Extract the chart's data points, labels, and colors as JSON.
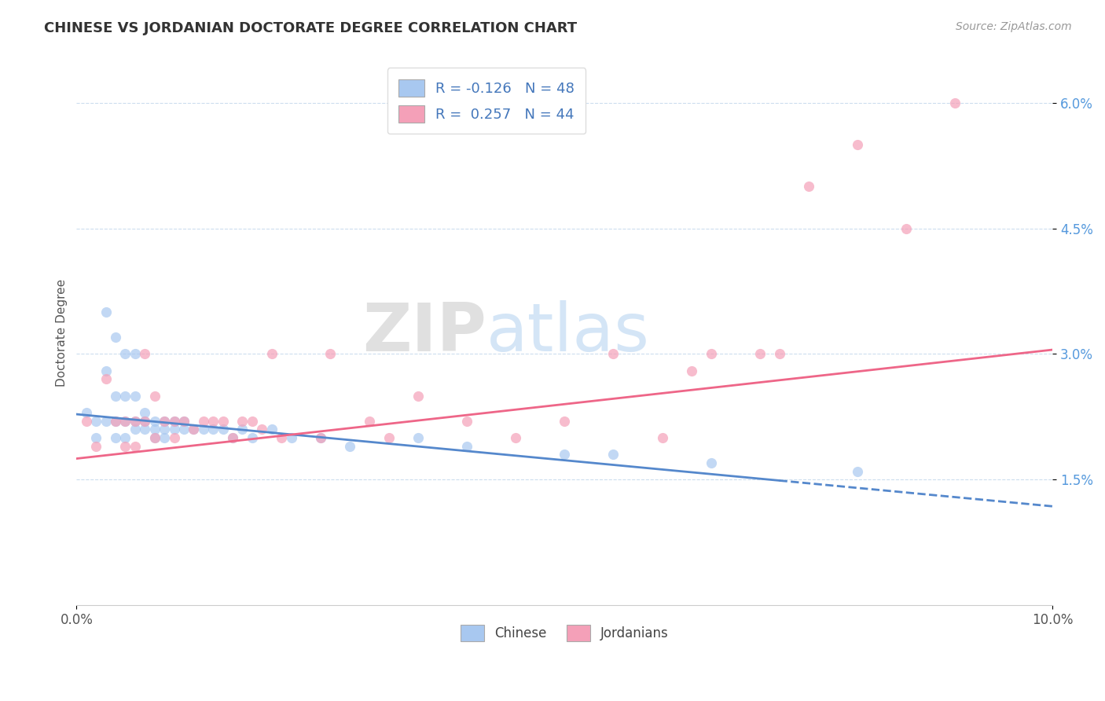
{
  "title": "CHINESE VS JORDANIAN DOCTORATE DEGREE CORRELATION CHART",
  "source": "Source: ZipAtlas.com",
  "xlabel": "",
  "ylabel": "Doctorate Degree",
  "xlim": [
    0.0,
    0.1
  ],
  "ylim": [
    0.0,
    0.065
  ],
  "xtick_labels": [
    "0.0%",
    "10.0%"
  ],
  "xtick_vals": [
    0.0,
    0.1
  ],
  "yticks": [
    0.015,
    0.03,
    0.045,
    0.06
  ],
  "ytick_labels": [
    "1.5%",
    "3.0%",
    "4.5%",
    "6.0%"
  ],
  "chinese_color": "#A8C8F0",
  "jordanian_color": "#F4A0B8",
  "chinese_line_color": "#5588CC",
  "jordanian_line_color": "#EE6688",
  "chinese_line_solid_end": 0.072,
  "chinese_line_y_start": 0.0228,
  "chinese_line_y_end": 0.0118,
  "jordanian_line_y_start": 0.0175,
  "jordanian_line_y_end": 0.0305,
  "watermark_zip": "ZIP",
  "watermark_atlas": "atlas",
  "legend_text_1": "R = -0.126   N = 48",
  "legend_text_2": "R =  0.257   N = 44",
  "title_color": "#333333",
  "source_color": "#999999",
  "ytick_color": "#5599DD",
  "xtick_color": "#555555",
  "grid_color": "#CCDDEE",
  "chinese_scatter": [
    [
      0.001,
      0.023
    ],
    [
      0.002,
      0.022
    ],
    [
      0.002,
      0.02
    ],
    [
      0.003,
      0.035
    ],
    [
      0.003,
      0.028
    ],
    [
      0.003,
      0.022
    ],
    [
      0.004,
      0.032
    ],
    [
      0.004,
      0.025
    ],
    [
      0.004,
      0.022
    ],
    [
      0.004,
      0.02
    ],
    [
      0.005,
      0.03
    ],
    [
      0.005,
      0.025
    ],
    [
      0.005,
      0.022
    ],
    [
      0.005,
      0.02
    ],
    [
      0.006,
      0.03
    ],
    [
      0.006,
      0.025
    ],
    [
      0.006,
      0.022
    ],
    [
      0.006,
      0.021
    ],
    [
      0.007,
      0.023
    ],
    [
      0.007,
      0.022
    ],
    [
      0.007,
      0.021
    ],
    [
      0.008,
      0.022
    ],
    [
      0.008,
      0.021
    ],
    [
      0.008,
      0.02
    ],
    [
      0.009,
      0.022
    ],
    [
      0.009,
      0.021
    ],
    [
      0.009,
      0.02
    ],
    [
      0.01,
      0.022
    ],
    [
      0.01,
      0.021
    ],
    [
      0.011,
      0.022
    ],
    [
      0.011,
      0.021
    ],
    [
      0.012,
      0.021
    ],
    [
      0.013,
      0.021
    ],
    [
      0.014,
      0.021
    ],
    [
      0.015,
      0.021
    ],
    [
      0.016,
      0.02
    ],
    [
      0.017,
      0.021
    ],
    [
      0.018,
      0.02
    ],
    [
      0.02,
      0.021
    ],
    [
      0.022,
      0.02
    ],
    [
      0.025,
      0.02
    ],
    [
      0.028,
      0.019
    ],
    [
      0.035,
      0.02
    ],
    [
      0.04,
      0.019
    ],
    [
      0.05,
      0.018
    ],
    [
      0.055,
      0.018
    ],
    [
      0.065,
      0.017
    ],
    [
      0.08,
      0.016
    ]
  ],
  "jordanian_scatter": [
    [
      0.001,
      0.022
    ],
    [
      0.002,
      0.019
    ],
    [
      0.003,
      0.027
    ],
    [
      0.004,
      0.022
    ],
    [
      0.005,
      0.022
    ],
    [
      0.005,
      0.019
    ],
    [
      0.006,
      0.022
    ],
    [
      0.006,
      0.019
    ],
    [
      0.007,
      0.03
    ],
    [
      0.007,
      0.022
    ],
    [
      0.008,
      0.025
    ],
    [
      0.008,
      0.02
    ],
    [
      0.009,
      0.022
    ],
    [
      0.01,
      0.022
    ],
    [
      0.01,
      0.02
    ],
    [
      0.011,
      0.022
    ],
    [
      0.012,
      0.021
    ],
    [
      0.013,
      0.022
    ],
    [
      0.014,
      0.022
    ],
    [
      0.015,
      0.022
    ],
    [
      0.016,
      0.02
    ],
    [
      0.017,
      0.022
    ],
    [
      0.018,
      0.022
    ],
    [
      0.019,
      0.021
    ],
    [
      0.02,
      0.03
    ],
    [
      0.021,
      0.02
    ],
    [
      0.025,
      0.02
    ],
    [
      0.026,
      0.03
    ],
    [
      0.03,
      0.022
    ],
    [
      0.032,
      0.02
    ],
    [
      0.035,
      0.025
    ],
    [
      0.04,
      0.022
    ],
    [
      0.045,
      0.02
    ],
    [
      0.05,
      0.022
    ],
    [
      0.055,
      0.03
    ],
    [
      0.06,
      0.02
    ],
    [
      0.063,
      0.028
    ],
    [
      0.065,
      0.03
    ],
    [
      0.07,
      0.03
    ],
    [
      0.072,
      0.03
    ],
    [
      0.075,
      0.05
    ],
    [
      0.08,
      0.055
    ],
    [
      0.085,
      0.045
    ],
    [
      0.09,
      0.06
    ]
  ]
}
